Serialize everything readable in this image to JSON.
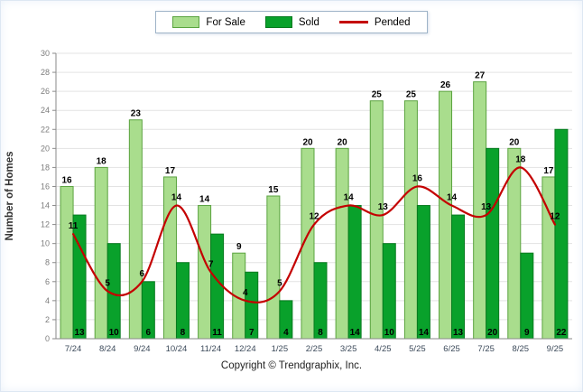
{
  "copyright": {
    "text": "Copyright © Trendgraphix, Inc."
  },
  "chart_data": {
    "type": "bar",
    "title": "",
    "ylabel": "Number of Homes",
    "xlabel": "",
    "ylim": [
      0,
      30
    ],
    "ytick_step": 2,
    "grid": true,
    "legend_position": "top",
    "categories": [
      "7/24",
      "8/24",
      "9/24",
      "10/24",
      "11/24",
      "12/24",
      "1/25",
      "2/25",
      "3/25",
      "4/25",
      "5/25",
      "6/25",
      "7/25",
      "8/25",
      "9/25"
    ],
    "series": [
      {
        "name": "For Sale",
        "type": "bar",
        "color": "#a9dd8d",
        "border": "#5aa33f",
        "values": [
          16,
          18,
          23,
          17,
          14,
          9,
          15,
          20,
          20,
          25,
          25,
          26,
          27,
          20,
          17
        ]
      },
      {
        "name": "Sold",
        "type": "bar",
        "color": "#09a12b",
        "border": "#067a1e",
        "values": [
          13,
          10,
          6,
          8,
          11,
          7,
          4,
          8,
          14,
          10,
          14,
          13,
          20,
          9,
          22
        ]
      },
      {
        "name": "Pended",
        "type": "line",
        "color": "#c40000",
        "values": [
          11,
          5,
          6,
          14,
          7,
          4,
          5,
          12,
          14,
          13,
          16,
          14,
          13,
          18,
          12
        ]
      }
    ]
  }
}
